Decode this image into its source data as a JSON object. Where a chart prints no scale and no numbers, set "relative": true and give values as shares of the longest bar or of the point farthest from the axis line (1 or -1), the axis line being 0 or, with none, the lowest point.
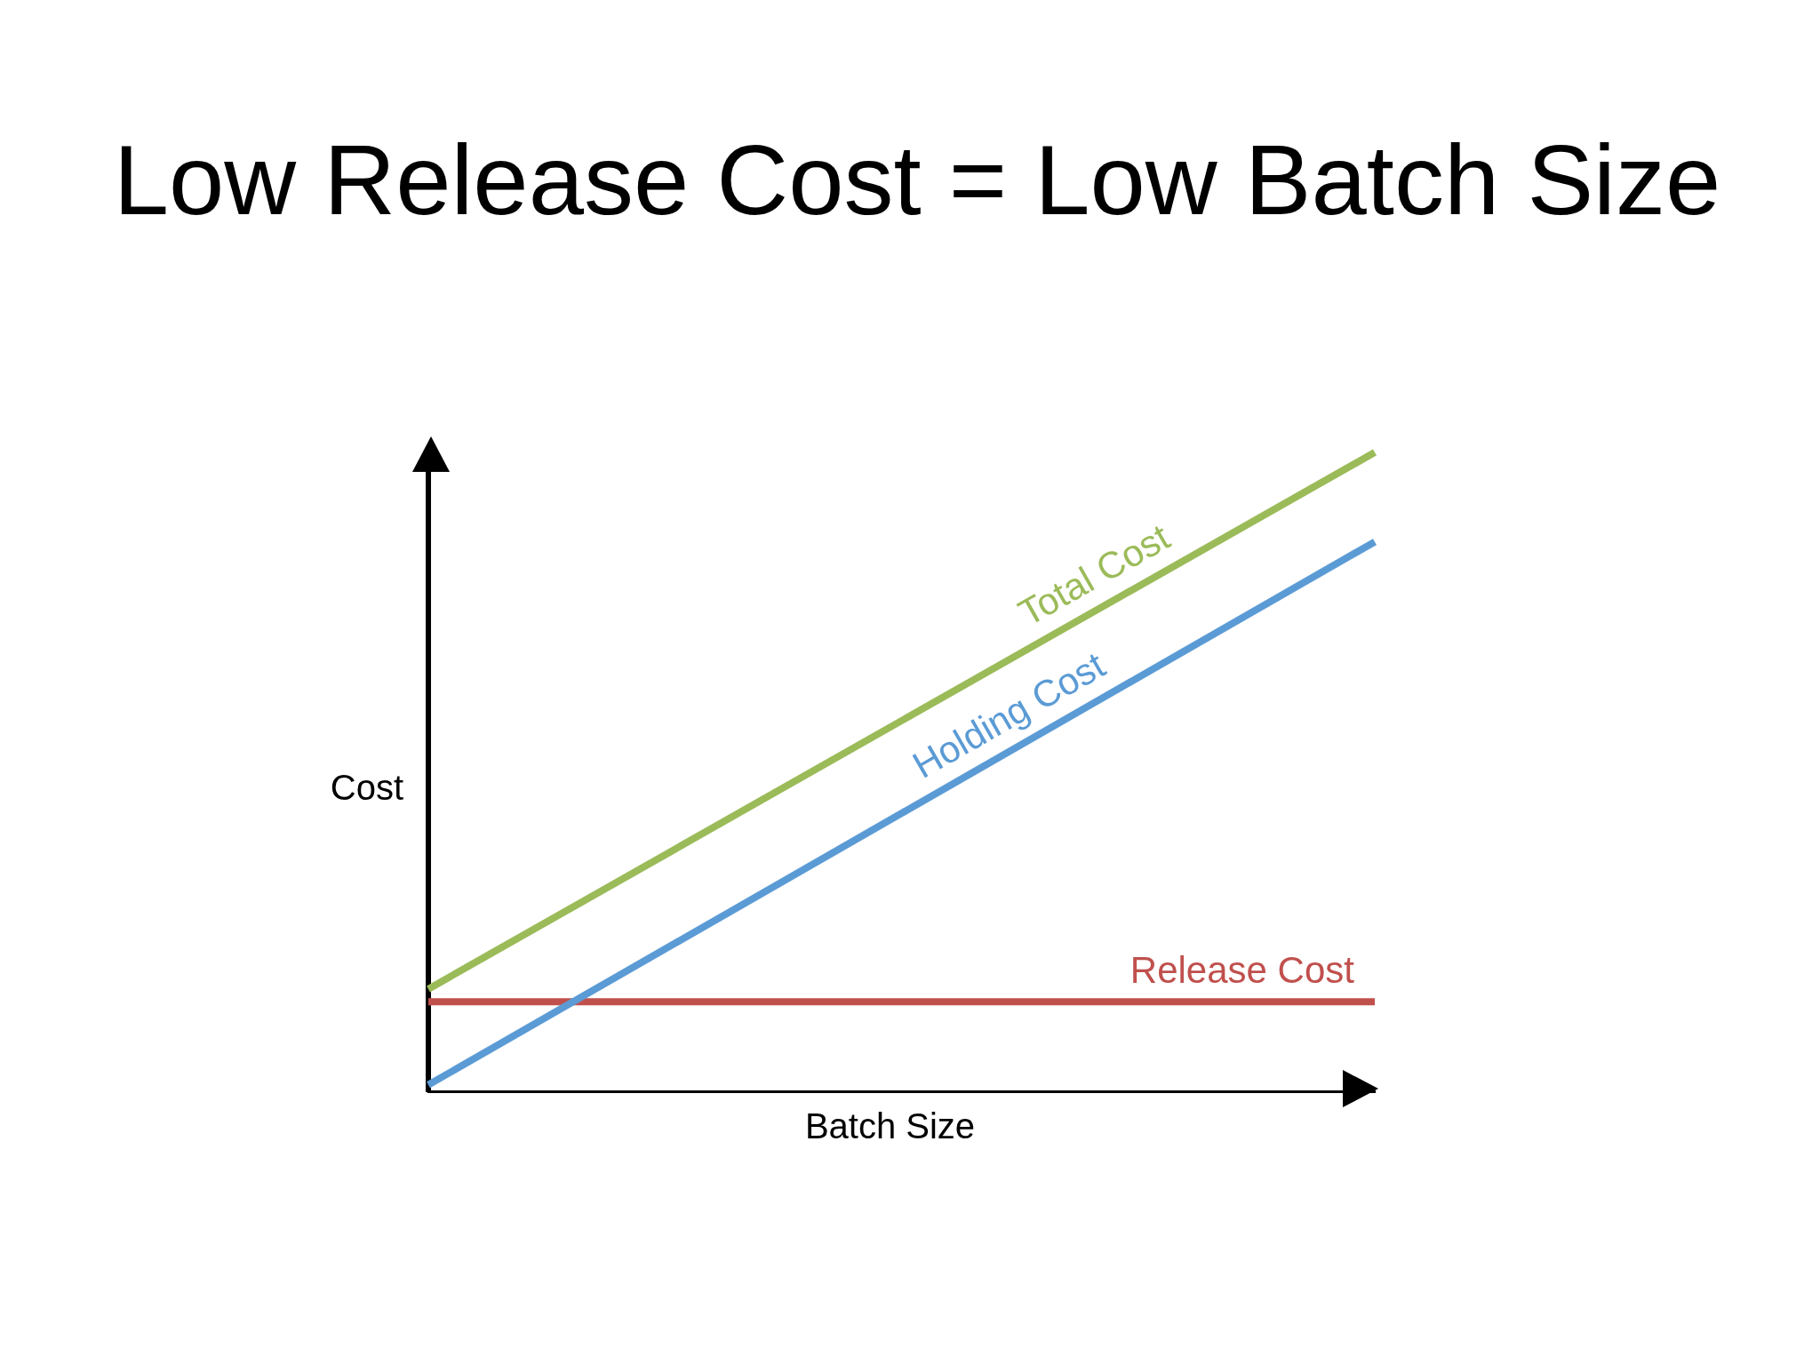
{
  "chart_data": {
    "type": "line",
    "title": "Low Release Cost = Low Batch Size",
    "xlabel": "Batch Size",
    "ylabel": "Cost",
    "relative": true,
    "categories": [
      null,
      null
    ],
    "series": [
      {
        "name": "Total Cost",
        "color": "#9bbb59",
        "values": [
          0.16,
          1
        ]
      },
      {
        "name": "Holding Cost",
        "color": "#5b9bd5",
        "values": [
          0.01,
          0.86
        ]
      },
      {
        "name": "Release Cost",
        "color": "#c0504d",
        "values": [
          0.14,
          0.14
        ]
      }
    ]
  }
}
